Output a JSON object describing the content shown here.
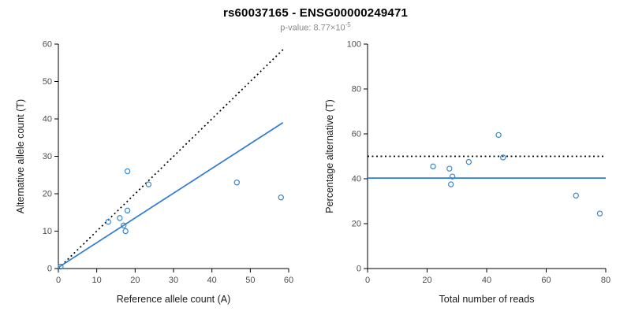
{
  "header": {
    "title": "rs60037165 - ENSG00000249471",
    "subtitle_base": "p-value: 8.77×10",
    "subtitle_exp": "-5"
  },
  "colors": {
    "point": "#3b87c8",
    "regression": "#2b7bd4",
    "identity": "#000000",
    "axis": "#000000",
    "tick_label": "#4d4d4d",
    "axis_label": "#1a1a1a"
  },
  "chart_data": [
    {
      "type": "scatter",
      "name": "allele-counts-scatter",
      "title": "",
      "xlabel": "Reference allele count (A)",
      "ylabel": "Alternative allele count (T)",
      "xlim": [
        0,
        60
      ],
      "ylim": [
        0,
        60
      ],
      "xticks": [
        0,
        10,
        20,
        30,
        40,
        50,
        60
      ],
      "yticks": [
        0,
        10,
        20,
        30,
        40,
        50,
        60
      ],
      "grid": false,
      "legend": "none",
      "points": [
        [
          0.6,
          0.5
        ],
        [
          13,
          12.5
        ],
        [
          16,
          13.5
        ],
        [
          17,
          11.5
        ],
        [
          17.5,
          10
        ],
        [
          18,
          15.5
        ],
        [
          18,
          26
        ],
        [
          23.5,
          22.5
        ],
        [
          46.5,
          23
        ],
        [
          58,
          19
        ]
      ],
      "lines": [
        {
          "name": "identity-line",
          "style": "dotted",
          "color": "#000000",
          "x1": 0,
          "y1": 0,
          "x2": 59,
          "y2": 59
        },
        {
          "name": "regression-line",
          "style": "solid",
          "color": "#2b7bd4",
          "x1": 0,
          "y1": 0.3,
          "x2": 58.5,
          "y2": 39
        }
      ]
    },
    {
      "type": "scatter",
      "name": "percentage-vs-reads-scatter",
      "title": "",
      "xlabel": "Total number of reads",
      "ylabel": "Percentage alternative (T)",
      "xlim": [
        0,
        80
      ],
      "ylim": [
        0,
        100
      ],
      "xticks": [
        0,
        20,
        40,
        60,
        80
      ],
      "yticks": [
        0,
        20,
        40,
        60,
        80,
        100
      ],
      "grid": false,
      "legend": "none",
      "points": [
        [
          22,
          45.5
        ],
        [
          27.5,
          44.5
        ],
        [
          28.5,
          41
        ],
        [
          28,
          37.5
        ],
        [
          34,
          47.5
        ],
        [
          44,
          59.5
        ],
        [
          45.5,
          49.5
        ],
        [
          70,
          32.5
        ],
        [
          78,
          24.5
        ]
      ],
      "lines": [
        {
          "name": "expected-ratio-line",
          "style": "dotted",
          "color": "#000000",
          "x1": 0,
          "y1": 50,
          "x2": 80,
          "y2": 50
        },
        {
          "name": "observed-ratio-line",
          "style": "solid",
          "color": "#2b7bd4",
          "x1": 0,
          "y1": 40.3,
          "x2": 80,
          "y2": 40.3
        }
      ]
    }
  ]
}
